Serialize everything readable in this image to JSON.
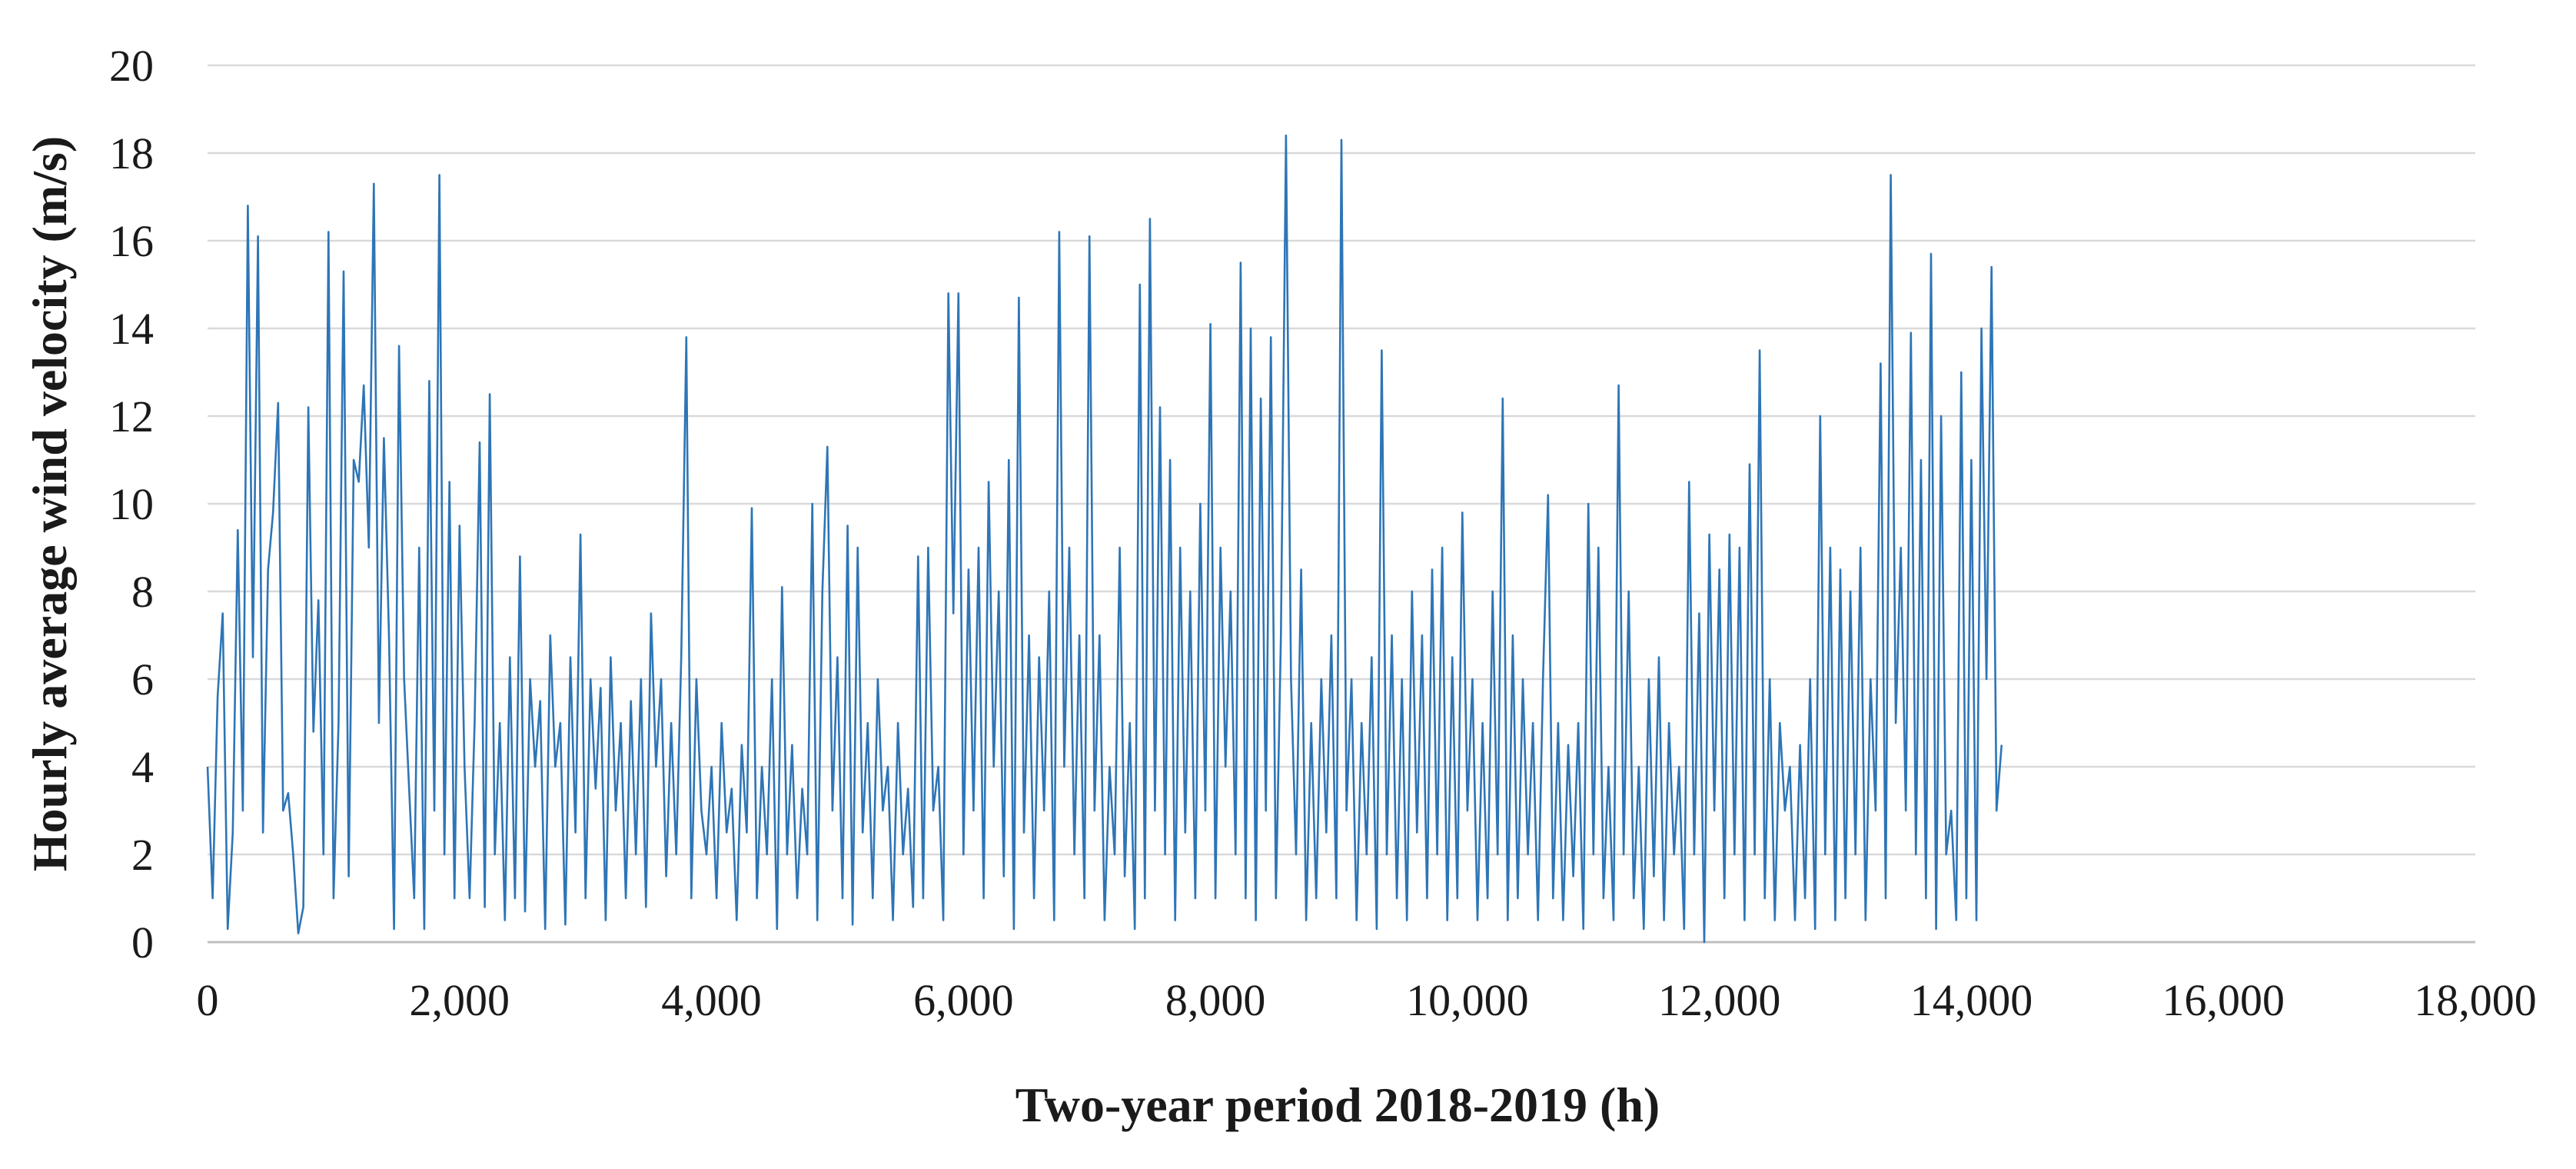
{
  "colors": {
    "series": "#2e75b6",
    "grid": "#d9d9d9",
    "text": "#1a1a1a"
  },
  "chart_data": {
    "type": "line",
    "title": "",
    "xlabel": "Two-year period 2018-2019 (h)",
    "ylabel": "Hourly average wind velocity (m/s)",
    "xlim": [
      0,
      18000
    ],
    "ylim": [
      0,
      20
    ],
    "x_ticks": [
      "0",
      "2,000",
      "4,000",
      "6,000",
      "8,000",
      "10,000",
      "12,000",
      "14,000",
      "16,000",
      "18,000"
    ],
    "y_ticks": [
      "0",
      "2",
      "4",
      "6",
      "8",
      "10",
      "12",
      "14",
      "16",
      "18",
      "20"
    ],
    "grid": "horizontal",
    "legend": "none",
    "series": [
      {
        "x_start": 0,
        "x_step": 40,
        "values": [
          4.0,
          1.0,
          5.6,
          7.5,
          0.3,
          2.5,
          9.4,
          3.0,
          16.8,
          6.5,
          16.1,
          2.5,
          8.5,
          9.8,
          12.3,
          3.0,
          3.4,
          2.0,
          0.2,
          0.8,
          12.2,
          4.8,
          7.8,
          2.0,
          16.2,
          1.0,
          5.0,
          15.3,
          1.5,
          11.0,
          10.5,
          12.7,
          9.0,
          17.3,
          5.0,
          11.5,
          7.0,
          0.3,
          13.6,
          6.0,
          3.5,
          1.0,
          9.0,
          0.3,
          12.8,
          3.0,
          17.5,
          2.0,
          10.5,
          1.0,
          9.5,
          4.0,
          1.0,
          5.0,
          11.4,
          0.8,
          12.5,
          2.0,
          5.0,
          0.5,
          6.5,
          1.0,
          8.8,
          0.7,
          6.0,
          4.0,
          5.5,
          0.3,
          7.0,
          4.0,
          5.0,
          0.4,
          6.5,
          2.5,
          9.3,
          1.0,
          6.0,
          3.5,
          5.8,
          0.5,
          6.5,
          3.0,
          5.0,
          1.0,
          5.5,
          2.0,
          6.0,
          0.8,
          7.5,
          4.0,
          6.0,
          1.5,
          5.0,
          2.0,
          6.5,
          13.8,
          1.0,
          6.0,
          3.0,
          2.0,
          4.0,
          1.0,
          5.0,
          2.5,
          3.5,
          0.5,
          4.5,
          2.5,
          9.9,
          1.0,
          4.0,
          2.0,
          6.0,
          0.3,
          8.1,
          2.0,
          4.5,
          1.0,
          3.5,
          2.0,
          10.0,
          0.5,
          8.0,
          11.3,
          3.0,
          6.5,
          1.0,
          9.5,
          0.4,
          9.0,
          2.5,
          5.0,
          1.0,
          6.0,
          3.0,
          4.0,
          0.5,
          5.0,
          2.0,
          3.5,
          0.8,
          8.8,
          1.0,
          9.0,
          3.0,
          4.0,
          0.5,
          14.8,
          7.5,
          14.8,
          2.0,
          8.5,
          3.0,
          9.0,
          1.0,
          10.5,
          4.0,
          8.0,
          1.5,
          11.0,
          0.3,
          14.7,
          2.5,
          7.0,
          1.0,
          6.5,
          3.0,
          8.0,
          0.5,
          16.2,
          4.0,
          9.0,
          2.0,
          7.0,
          1.0,
          16.1,
          3.0,
          7.0,
          0.5,
          4.0,
          2.0,
          9.0,
          1.5,
          5.0,
          0.3,
          15.0,
          1.0,
          16.5,
          3.0,
          12.2,
          2.0,
          11.0,
          0.5,
          9.0,
          2.5,
          8.0,
          1.0,
          10.0,
          3.0,
          14.1,
          1.0,
          9.0,
          4.0,
          8.0,
          2.0,
          15.5,
          1.0,
          14.0,
          0.5,
          12.4,
          3.0,
          13.8,
          1.0,
          7.0,
          18.4,
          6.0,
          2.0,
          8.5,
          0.5,
          5.0,
          1.0,
          6.0,
          2.5,
          7.0,
          1.0,
          18.3,
          3.0,
          6.0,
          0.5,
          5.0,
          2.0,
          6.5,
          0.3,
          13.5,
          2.0,
          7.0,
          1.0,
          6.0,
          0.5,
          8.0,
          2.5,
          7.0,
          1.0,
          8.5,
          2.0,
          9.0,
          0.5,
          6.5,
          1.0,
          9.8,
          3.0,
          6.0,
          0.5,
          5.0,
          1.0,
          8.0,
          2.0,
          12.4,
          0.5,
          7.0,
          1.0,
          6.0,
          2.0,
          5.0,
          0.5,
          6.0,
          10.2,
          1.0,
          5.0,
          0.5,
          4.5,
          1.5,
          5.0,
          0.3,
          10.0,
          2.0,
          9.0,
          1.0,
          4.0,
          0.5,
          12.7,
          2.0,
          8.0,
          1.0,
          4.0,
          0.3,
          6.0,
          1.5,
          6.5,
          0.5,
          5.0,
          2.0,
          4.0,
          0.3,
          10.5,
          2.0,
          7.5,
          0.0,
          9.3,
          3.0,
          8.5,
          1.0,
          9.3,
          2.0,
          9.0,
          0.5,
          10.9,
          2.0,
          13.5,
          1.0,
          6.0,
          0.5,
          5.0,
          3.0,
          4.0,
          0.5,
          4.5,
          1.0,
          6.0,
          0.3,
          12.0,
          2.0,
          9.0,
          0.5,
          8.5,
          1.0,
          8.0,
          2.0,
          9.0,
          0.5,
          6.0,
          3.0,
          13.2,
          1.0,
          17.5,
          5.0,
          9.0,
          3.0,
          13.9,
          2.0,
          11.0,
          1.0,
          15.7,
          0.3,
          12.0,
          2.0,
          3.0,
          0.5,
          13.0,
          1.0,
          11.0,
          0.5,
          14.0,
          6.0,
          15.4,
          3.0,
          4.5
        ]
      }
    ]
  }
}
